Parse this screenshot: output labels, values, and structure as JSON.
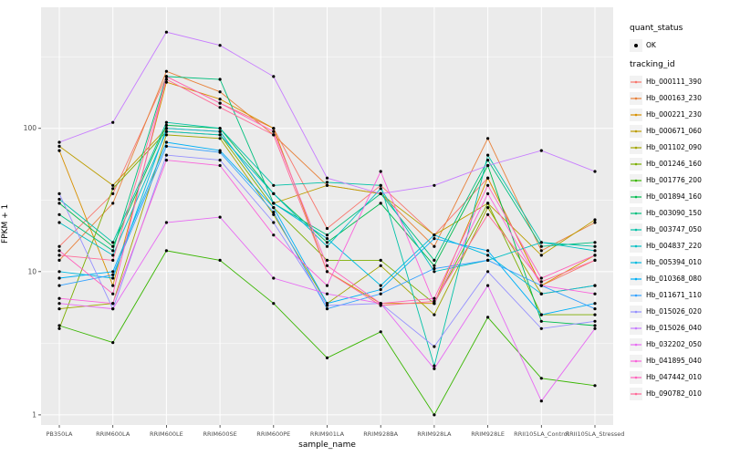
{
  "figure": {
    "background": "#FFFFFF",
    "panel_background": "#EBEBEB",
    "grid_major_color": "#FFFFFF",
    "grid_minor_color": "#FFFFFF",
    "tick_color": "#333333",
    "tick_label_color": "#4D4D4D",
    "point_color": "#000000"
  },
  "axes": {
    "x_title": "sample_name",
    "y_title": "FPKM + 1"
  },
  "legend": {
    "quant_title": "quant_status",
    "ok_label": "OK",
    "tracking_title": "tracking_id"
  },
  "chart_data": {
    "type": "line",
    "x_type": "categorical",
    "y_scale": "log10",
    "title": "",
    "xlabel": "sample_name",
    "ylabel": "FPKM + 1",
    "ylim": [
      0.85,
      700
    ],
    "yticks": [
      1,
      10,
      100
    ],
    "yticks_minor": [
      3.1623,
      31.623,
      316.23
    ],
    "grid": true,
    "legend_position": "right",
    "marker": {
      "shape": "point",
      "color": "#000000"
    },
    "categories": [
      "PB350LA",
      "RRIM600LA",
      "RRIM600LE",
      "RRIM600SE",
      "RRIM600PE",
      "RRIM901LA",
      "RRIM928BA",
      "RRIM928LA",
      "RRIM928LE",
      "RRII105LA_Control",
      "RRII105LA_Stressed"
    ],
    "series": [
      {
        "name": "Hb_000111_390",
        "color": "#F8766D",
        "values": [
          15,
          35,
          230,
          150,
          100,
          20,
          40,
          18,
          45,
          8,
          12
        ]
      },
      {
        "name": "Hb_000163_230",
        "color": "#E8813A",
        "values": [
          12,
          30,
          250,
          180,
          90,
          40,
          35,
          15,
          85,
          14,
          22
        ]
      },
      {
        "name": "Hb_000221_230",
        "color": "#D89000",
        "values": [
          70,
          8,
          210,
          160,
          100,
          10,
          6,
          6,
          45,
          8,
          13
        ]
      },
      {
        "name": "Hb_000671_060",
        "color": "#BC9D00",
        "values": [
          75,
          40,
          100,
          95,
          30,
          40,
          35,
          18,
          30,
          13,
          23
        ]
      },
      {
        "name": "Hb_001102_090",
        "color": "#A3A500",
        "values": [
          5.5,
          6,
          90,
          85,
          25,
          6,
          11,
          5,
          28,
          7,
          8
        ]
      },
      {
        "name": "Hb_001246_160",
        "color": "#7CAE00",
        "values": [
          4,
          38,
          95,
          90,
          28,
          12,
          12,
          6,
          30,
          5,
          5
        ]
      },
      {
        "name": "Hb_001776_200",
        "color": "#39B600",
        "values": [
          4.2,
          3.2,
          14,
          12,
          6,
          2.5,
          3.8,
          1.0,
          4.8,
          1.8,
          1.6
        ]
      },
      {
        "name": "Hb_001894_160",
        "color": "#00BB4E",
        "values": [
          30,
          15,
          105,
          100,
          35,
          16,
          30,
          11,
          55,
          4.5,
          4.2
        ]
      },
      {
        "name": "Hb_003090_150",
        "color": "#00BF7D",
        "values": [
          25,
          14,
          230,
          220,
          30,
          18,
          35,
          12,
          60,
          15,
          16
        ]
      },
      {
        "name": "Hb_003747_050",
        "color": "#00C1A7",
        "values": [
          32,
          16,
          110,
          100,
          40,
          42,
          40,
          2.2,
          65,
          16,
          15
        ]
      },
      {
        "name": "Hb_004837_220",
        "color": "#00BFC4",
        "values": [
          22,
          13,
          95,
          90,
          35,
          15,
          38,
          10,
          12,
          16,
          14
        ]
      },
      {
        "name": "Hb_005394_010",
        "color": "#00BAE0",
        "values": [
          10,
          9,
          100,
          95,
          30,
          17,
          8,
          18,
          13,
          7,
          8
        ]
      },
      {
        "name": "Hb_010368_080",
        "color": "#00B0F6",
        "values": [
          9,
          10,
          80,
          70,
          28,
          6,
          7.5,
          17,
          14,
          5,
          6
        ]
      },
      {
        "name": "Hb_011671_110",
        "color": "#35A2FF",
        "values": [
          8,
          9.5,
          75,
          68,
          26,
          5.5,
          7,
          10.5,
          12,
          8,
          5.5
        ]
      },
      {
        "name": "Hb_015026_020",
        "color": "#9590FF",
        "values": [
          35,
          5.5,
          65,
          60,
          22,
          5.8,
          6,
          3,
          10,
          4,
          4.5
        ]
      },
      {
        "name": "Hb_015026_040",
        "color": "#C77CFF",
        "values": [
          80,
          110,
          470,
          380,
          230,
          45,
          35,
          40,
          55,
          70,
          50
        ]
      },
      {
        "name": "Hb_032202_050",
        "color": "#E76BF3",
        "values": [
          6,
          5.5,
          22,
          24,
          9,
          7,
          6,
          2.1,
          8,
          1.25,
          4
        ]
      },
      {
        "name": "Hb_041895_040",
        "color": "#FA62DB",
        "values": [
          6.5,
          6,
          60,
          55,
          18,
          8,
          50,
          6,
          35,
          8,
          7
        ]
      },
      {
        "name": "Hb_047442_010",
        "color": "#FF62BC",
        "values": [
          14,
          7,
          230,
          150,
          95,
          11,
          6,
          6.5,
          40,
          9,
          13
        ]
      },
      {
        "name": "Hb_090782_010",
        "color": "#FF6A98",
        "values": [
          13,
          12,
          220,
          140,
          90,
          10,
          5.8,
          6.2,
          25,
          8.5,
          12
        ]
      }
    ]
  }
}
